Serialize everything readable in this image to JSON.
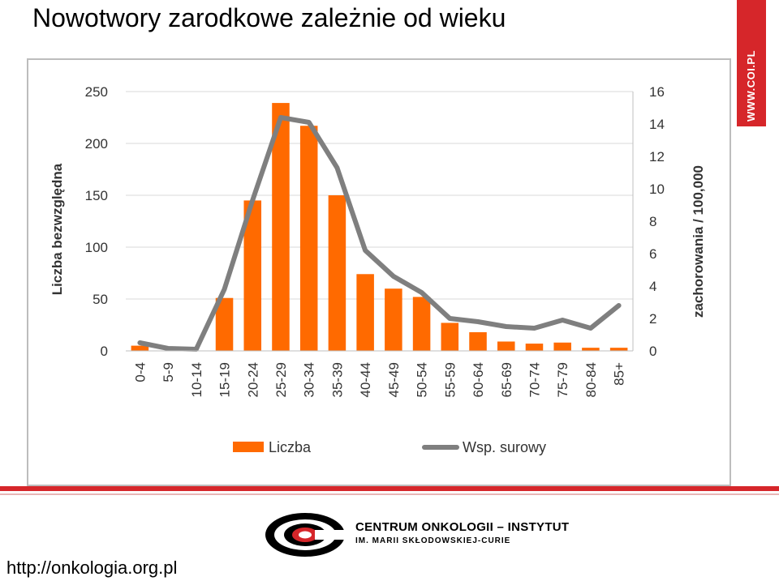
{
  "slide": {
    "title": "Nowotwory zarodkowe zależnie od wieku",
    "badge": "WWW.COI.PL",
    "footer_url": "http://onkologia.org.pl",
    "logo_line1": "CENTRUM ONKOLOGII – INSTYTUT",
    "logo_line2": "IM. MARII SKŁODOWSKIEJ-CURIE"
  },
  "colors": {
    "bar": "#ff6a00",
    "line": "#7f7f7f",
    "brand_red": "#d6262a",
    "grid": "#d9d9d9"
  },
  "chart_data": {
    "type": "bar",
    "categories": [
      "0-4",
      "5-9",
      "10-14",
      "15-19",
      "20-24",
      "25-29",
      "30-34",
      "35-39",
      "40-44",
      "45-49",
      "50-54",
      "55-59",
      "60-64",
      "65-69",
      "70-74",
      "75-79",
      "80-84",
      "85+"
    ],
    "series": [
      {
        "name": "Liczba",
        "type": "bar",
        "axis": "left",
        "values": [
          5,
          0,
          0,
          51,
          145,
          239,
          217,
          150,
          74,
          60,
          52,
          27,
          18,
          9,
          7,
          8,
          3,
          3
        ]
      },
      {
        "name": "Wsp. surowy",
        "type": "line",
        "axis": "right",
        "values": [
          0.5,
          0.15,
          0.1,
          3.8,
          9.3,
          14.4,
          14.1,
          11.3,
          6.2,
          4.6,
          3.6,
          2.0,
          1.8,
          1.5,
          1.4,
          1.9,
          1.4,
          2.8
        ]
      }
    ],
    "ylabel": "Liczba bezwzględna",
    "y2label": "zachorowania / 100,000",
    "ylim": [
      0,
      250
    ],
    "y2lim": [
      0,
      16
    ],
    "yticks": [
      "0",
      "50",
      "100",
      "150",
      "200",
      "250"
    ],
    "y2ticks": [
      "0",
      "2",
      "4",
      "6",
      "8",
      "10",
      "12",
      "14",
      "16"
    ],
    "grid": true,
    "legend_position": "bottom"
  }
}
